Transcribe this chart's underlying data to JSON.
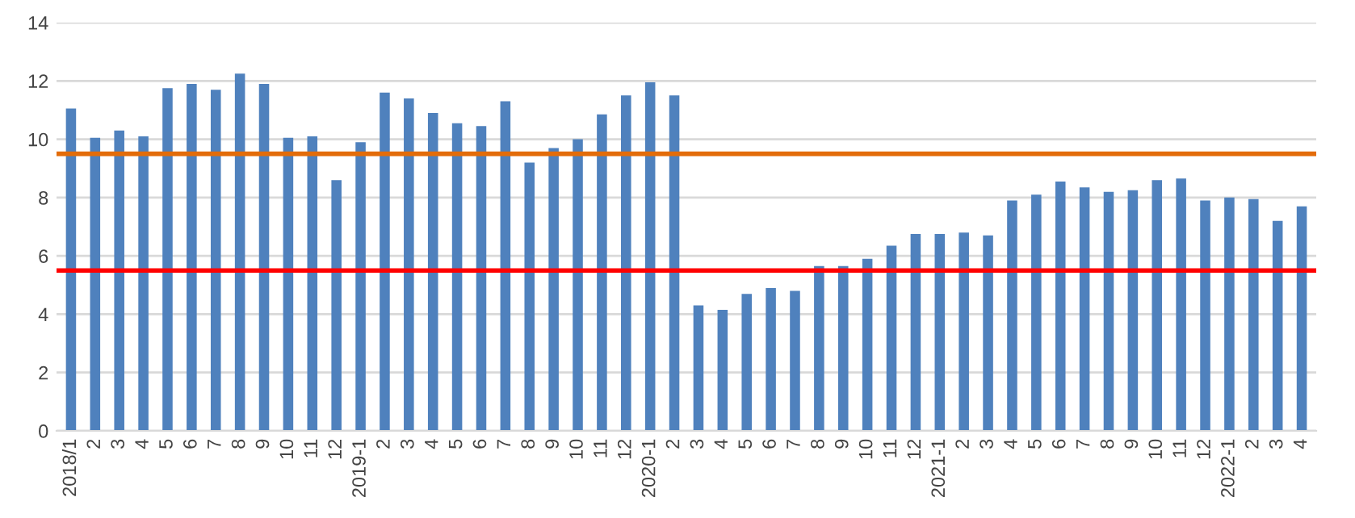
{
  "chart_data": {
    "type": "bar",
    "categories": [
      "2018/1",
      "2",
      "3",
      "4",
      "5",
      "6",
      "7",
      "8",
      "9",
      "10",
      "11",
      "12",
      "2019-1",
      "2",
      "3",
      "4",
      "5",
      "6",
      "7",
      "8",
      "9",
      "10",
      "11",
      "12",
      "2020-1",
      "2",
      "3",
      "4",
      "5",
      "6",
      "7",
      "8",
      "9",
      "10",
      "11",
      "12",
      "2021-1",
      "2",
      "3",
      "4",
      "5",
      "6",
      "7",
      "8",
      "9",
      "10",
      "11",
      "12",
      "2022-1",
      "2",
      "3",
      "4"
    ],
    "values": [
      11.05,
      10.05,
      10.3,
      10.1,
      11.75,
      11.9,
      11.7,
      12.25,
      11.9,
      10.05,
      10.1,
      8.6,
      9.9,
      11.6,
      11.4,
      10.9,
      10.55,
      10.45,
      11.3,
      9.2,
      9.7,
      10.0,
      10.85,
      11.5,
      11.95,
      11.5,
      4.3,
      4.15,
      4.7,
      4.9,
      4.8,
      5.65,
      5.65,
      5.9,
      6.35,
      6.75,
      6.75,
      6.8,
      6.7,
      7.9,
      8.1,
      8.55,
      8.35,
      8.2,
      8.25,
      8.6,
      8.65,
      7.9,
      8.0,
      7.95,
      7.2,
      7.7
    ],
    "color": "#4f81bd",
    "ylim": [
      0,
      14
    ],
    "yticks": [
      0,
      2,
      4,
      6,
      8,
      10,
      12,
      14
    ],
    "grid": "y",
    "ref_lines": [
      {
        "axis": "y",
        "value": 9.5,
        "color": "#e36c09"
      },
      {
        "axis": "y",
        "value": 5.5,
        "color": "#ff0000"
      }
    ]
  }
}
